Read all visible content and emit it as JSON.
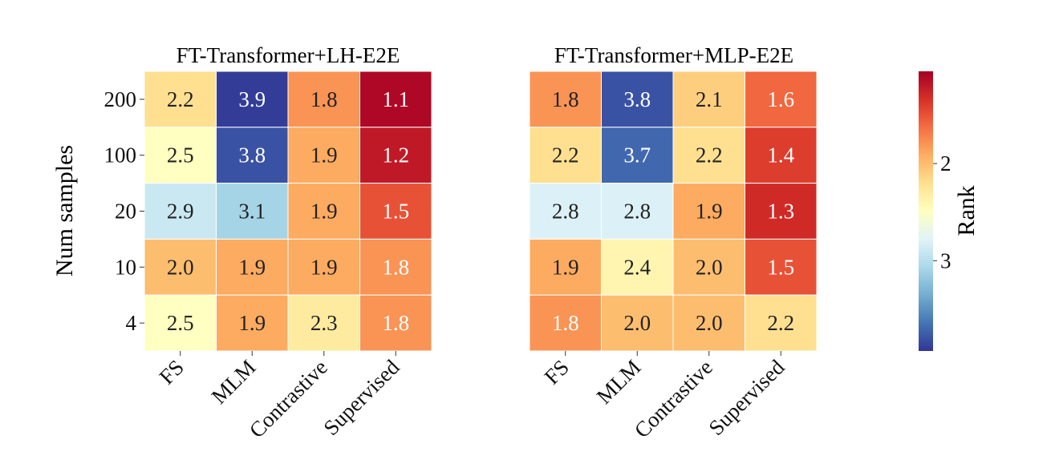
{
  "chart_data": [
    {
      "type": "heatmap",
      "title": "FT-Transformer+LH-E2E",
      "ylabel": "Num samples",
      "xlabel": "",
      "x_categories": [
        "FS",
        "MLM",
        "Contrastive",
        "Supervised"
      ],
      "y_categories": [
        "200",
        "100",
        "20",
        "10",
        "4"
      ],
      "values": [
        [
          2.2,
          3.9,
          1.8,
          1.1
        ],
        [
          2.5,
          3.8,
          1.9,
          1.2
        ],
        [
          2.9,
          3.1,
          1.9,
          1.5
        ],
        [
          2.0,
          1.9,
          1.9,
          1.8
        ],
        [
          2.5,
          1.9,
          2.3,
          1.8
        ]
      ]
    },
    {
      "type": "heatmap",
      "title": "FT-Transformer+MLP-E2E",
      "ylabel": "",
      "xlabel": "",
      "x_categories": [
        "FS",
        "MLM",
        "Contrastive",
        "Supervised"
      ],
      "y_categories": [
        "200",
        "100",
        "20",
        "10",
        "4"
      ],
      "values": [
        [
          1.8,
          3.8,
          2.1,
          1.6
        ],
        [
          2.2,
          3.7,
          2.2,
          1.4
        ],
        [
          2.8,
          2.8,
          1.9,
          1.3
        ],
        [
          1.9,
          2.4,
          2.0,
          1.5
        ],
        [
          1.8,
          2.0,
          2.0,
          2.2
        ]
      ]
    }
  ],
  "colorbar": {
    "label": "Rank",
    "colormap": "RdYlBu",
    "range": [
      1.05,
      3.93
    ],
    "ticks": [
      "2",
      "3"
    ],
    "tick_values": [
      2,
      3
    ],
    "inverted": true
  }
}
